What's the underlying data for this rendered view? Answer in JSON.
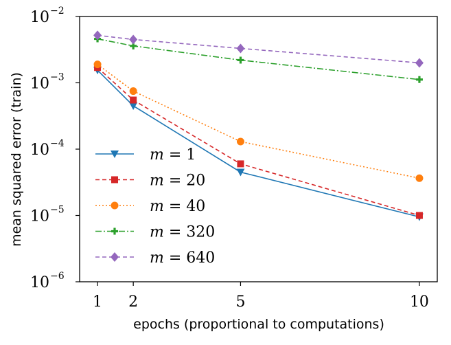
{
  "chart_data": {
    "type": "line",
    "xlabel": "epochs (proportional to computations)",
    "ylabel": "mean squared error (train)",
    "x": [
      1,
      2,
      5,
      10
    ],
    "xticks": [
      "1",
      "2",
      "5",
      "10"
    ],
    "xlim": [
      0.5,
      10.5
    ],
    "yscale": "log",
    "ylim": [
      1e-06,
      0.01
    ],
    "yticks": [
      {
        "base": "10",
        "exp": "−6",
        "value": 1e-06
      },
      {
        "base": "10",
        "exp": "−5",
        "value": 1e-05
      },
      {
        "base": "10",
        "exp": "−4",
        "value": 0.0001
      },
      {
        "base": "10",
        "exp": "−3",
        "value": 0.001
      },
      {
        "base": "10",
        "exp": "−2",
        "value": 0.01
      }
    ],
    "grid": false,
    "legend_position": "lower-left",
    "series": [
      {
        "name": "m = 1",
        "var": "m",
        "eq": " = 1",
        "color": "#1f77b4",
        "dash": "",
        "marker": "triangle-down",
        "values": [
          0.00155,
          0.00045,
          4.5e-05,
          9.5e-06
        ]
      },
      {
        "name": "m = 20",
        "var": "m",
        "eq": " = 20",
        "color": "#d62728",
        "dash": "6,4",
        "marker": "square",
        "values": [
          0.0017,
          0.00055,
          6e-05,
          1e-05
        ]
      },
      {
        "name": "m = 40",
        "var": "m",
        "eq": " = 40",
        "color": "#ff7f0e",
        "dash": "2,3",
        "marker": "circle",
        "values": [
          0.0019,
          0.00075,
          0.00013,
          3.65e-05
        ]
      },
      {
        "name": "m = 320",
        "var": "m",
        "eq": " = 320",
        "color": "#2ca02c",
        "dash": "9,3,2,3",
        "marker": "plus",
        "values": [
          0.0046,
          0.0036,
          0.0022,
          0.00112
        ]
      },
      {
        "name": "m = 640",
        "var": "m",
        "eq": " = 640",
        "color": "#9467bd",
        "dash": "6,4",
        "marker": "diamond",
        "values": [
          0.0052,
          0.0045,
          0.0033,
          0.002
        ]
      }
    ]
  }
}
